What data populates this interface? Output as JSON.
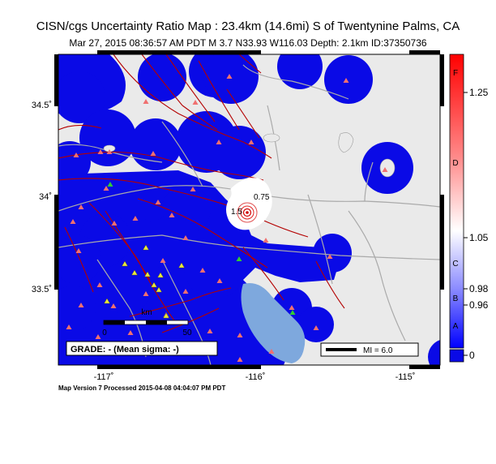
{
  "header": {
    "title": "CISN/cgs Uncertainty Ratio Map : 23.4km (14.6mi) S of Twentynine Palms, CA",
    "subtitle": "Mar 27, 2015 08:36:57 AM PDT   M 3.7   N33.93 W116.03   Depth: 2.1km   ID:37350736"
  },
  "map": {
    "lat_ticks": [
      "34.5˚",
      "34˚",
      "33.5˚"
    ],
    "lon_ticks": [
      "-117˚",
      "-116˚",
      "-115˚"
    ],
    "contour_labels": [
      "0.75",
      "1.5"
    ],
    "scale_bar": {
      "unit": "km",
      "start": "0",
      "end": "50"
    },
    "grade_box": "GRADE: - (Mean sigma: -)",
    "mi_legend": "MI = 6.0",
    "colors": {
      "water": "#7ea8dd",
      "land": "#eaeaea",
      "blob": "#0a0ae6",
      "faults": "#b40000",
      "roads": "#aaaaaa"
    }
  },
  "colorbar": {
    "grades": [
      "F",
      "D",
      "C",
      "B",
      "A"
    ],
    "values": [
      "1.25",
      "1.05",
      "0.98",
      "0.96",
      "0"
    ]
  },
  "footer": "Map Version 7 Processed 2015-04-08 04:04:07 PM PDT"
}
